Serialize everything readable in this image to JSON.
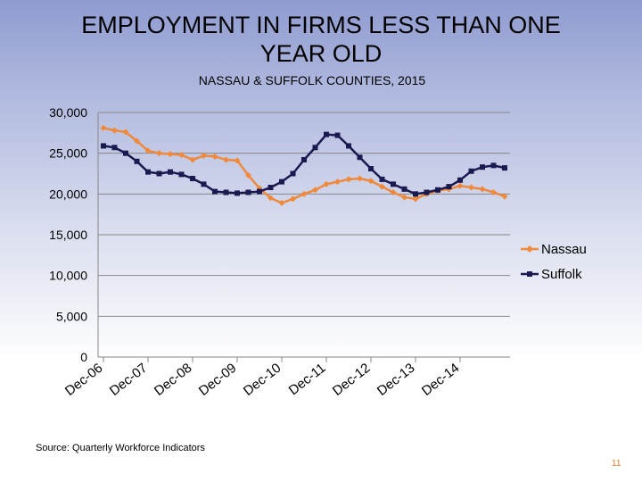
{
  "slide": {
    "title_line1": "EMPLOYMENT IN FIRMS LESS THAN ONE",
    "title_line2": "YEAR OLD",
    "subtitle": "NASSAU & SUFFOLK COUNTIES, 2015",
    "source": "Source: Quarterly Workforce Indicators",
    "page_number": "11"
  },
  "chart_data": {
    "type": "line",
    "title": "",
    "xlabel": "",
    "ylabel": "",
    "ylim": [
      0,
      30000
    ],
    "yticks": [
      0,
      5000,
      10000,
      15000,
      20000,
      25000,
      30000
    ],
    "ytick_labels": [
      "0",
      "5,000",
      "10,000",
      "15,000",
      "20,000",
      "25,000",
      "30,000"
    ],
    "x_tick_labels": [
      "Dec-06",
      "Dec-07",
      "Dec-08",
      "Dec-09",
      "Dec-10",
      "Dec-11",
      "Dec-12",
      "Dec-13",
      "Dec-14"
    ],
    "grid": true,
    "legend_position": "right",
    "x": [
      "Dec-06",
      "Mar-07",
      "Jun-07",
      "Sep-07",
      "Dec-07",
      "Mar-08",
      "Jun-08",
      "Sep-08",
      "Dec-08",
      "Mar-09",
      "Jun-09",
      "Sep-09",
      "Dec-09",
      "Mar-10",
      "Jun-10",
      "Sep-10",
      "Dec-10",
      "Mar-11",
      "Jun-11",
      "Sep-11",
      "Dec-11",
      "Mar-12",
      "Jun-12",
      "Sep-12",
      "Dec-12",
      "Mar-13",
      "Jun-13",
      "Sep-13",
      "Dec-13",
      "Mar-14",
      "Jun-14",
      "Sep-14",
      "Dec-14",
      "Mar-15",
      "Jun-15",
      "Sep-15",
      "Dec-15"
    ],
    "series": [
      {
        "name": "Nassau",
        "color": "#f0893a",
        "marker": "diamond",
        "values": [
          28100,
          27800,
          27600,
          26500,
          25300,
          25000,
          24900,
          24800,
          24200,
          24700,
          24600,
          24200,
          24100,
          22300,
          20700,
          19500,
          18900,
          19400,
          20000,
          20500,
          21200,
          21500,
          21800,
          21900,
          21600,
          20900,
          20200,
          19600,
          19400,
          20000,
          20400,
          20600,
          21000,
          20800,
          20600,
          20200,
          19700
        ]
      },
      {
        "name": "Suffolk",
        "color": "#1a1a50",
        "marker": "square",
        "values": [
          25900,
          25700,
          25000,
          24000,
          22700,
          22500,
          22700,
          22400,
          21900,
          21200,
          20300,
          20200,
          20100,
          20200,
          20300,
          20800,
          21500,
          22500,
          24200,
          25700,
          27300,
          27200,
          25900,
          24500,
          23100,
          21800,
          21200,
          20600,
          20000,
          20200,
          20500,
          20900,
          21700,
          22800,
          23300,
          23500,
          23200
        ]
      }
    ]
  }
}
